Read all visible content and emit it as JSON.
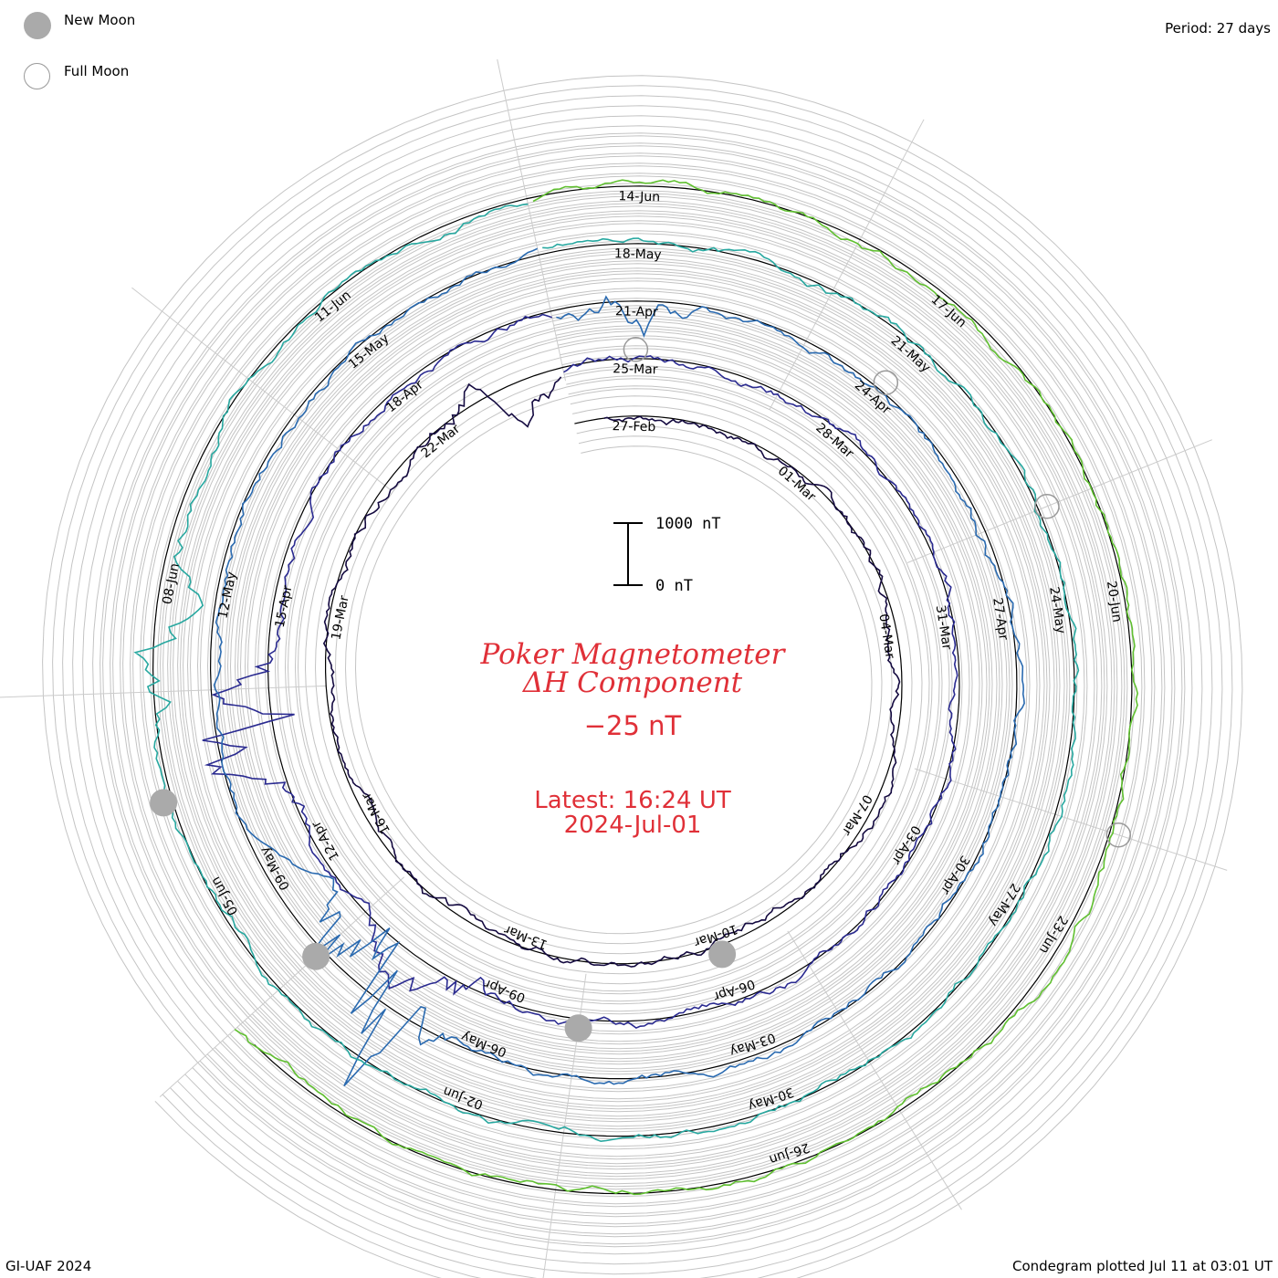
{
  "legend": {
    "new_moon_label": "New Moon",
    "full_moon_label": "Full Moon",
    "new_moon_color": "#aaaaaa",
    "full_moon_color": "#999999"
  },
  "period_label": "Period: 27 days",
  "credit": "GI-UAF 2024",
  "plotted_label": "Condegram plotted Jul 11 at 03:01 UT",
  "title_line1": "Poker Magnetometer",
  "title_line2": "ΔH Component",
  "baseline_value": "−25 nT",
  "latest_line1": "Latest: 16:24 UT",
  "latest_line2": "2024-Jul-01",
  "scale_bar": {
    "top_label": "1000 nT",
    "bottom_label": "0 nT"
  },
  "title_color": "#e03038",
  "chart_data": {
    "type": "line",
    "subtype": "spiral condegram",
    "period_days": 27,
    "start_date": "2024-02-26",
    "end_date": "2024-07-01",
    "series": [
      {
        "values_nt": "ΔH time series, 27-day spiral",
        "colors": [
          "#140a40",
          "#2a2a90",
          "#2a6ab0",
          "#28a8a0",
          "#60c030",
          "#a8b020",
          "#b07020",
          "#c04010"
        ]
      }
    ],
    "date_labels": [
      "27-Feb",
      "01-Mar",
      "04-Mar",
      "07-Mar",
      "10-Mar",
      "13-Mar",
      "16-Mar",
      "19-Mar",
      "22-Mar",
      "25-Mar",
      "28-Mar",
      "31-Mar",
      "03-Apr",
      "06-Apr",
      "09-Apr",
      "12-Apr",
      "15-Apr",
      "18-Apr",
      "21-Apr",
      "24-Apr",
      "27-Apr",
      "30-Apr",
      "03-May",
      "06-May",
      "09-May",
      "12-May",
      "15-May",
      "18-May",
      "21-May",
      "24-May",
      "27-May",
      "30-May",
      "02-Jun",
      "05-Jun",
      "08-Jun",
      "11-Jun",
      "14-Jun",
      "17-Jun",
      "20-Jun",
      "23-Jun",
      "26-Jun"
    ],
    "new_moons": [
      "10-Mar",
      "08-Apr",
      "08-May",
      "06-Jun"
    ],
    "full_moons": [
      "25-Mar",
      "24-Apr",
      "23-May",
      "22-Jun"
    ]
  }
}
